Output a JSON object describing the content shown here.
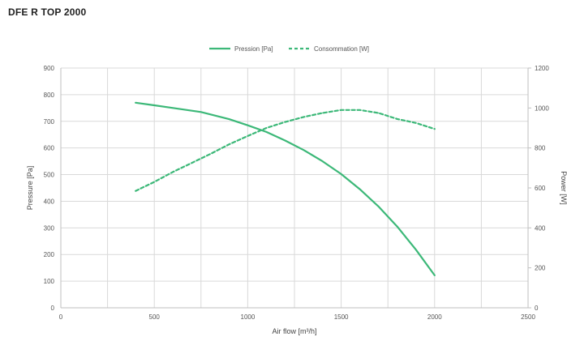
{
  "chart_data": {
    "type": "line",
    "title": "DFE R TOP 2000",
    "xlabel": "Air flow [m³/h]",
    "ylabel": "Pressure [Pa]",
    "y2label": "Power [W]",
    "xlim": [
      0,
      2500
    ],
    "ylim": [
      0,
      900
    ],
    "y2lim": [
      0,
      1200
    ],
    "x_ticks": [
      "0",
      "500",
      "1000",
      "1500",
      "2000",
      "2500"
    ],
    "y_ticks": [
      "0",
      "100",
      "200",
      "300",
      "400",
      "500",
      "600",
      "700",
      "800",
      "900"
    ],
    "y2_ticks": [
      "0",
      "200",
      "400",
      "600",
      "800",
      "1000",
      "1200"
    ],
    "grid": true,
    "legend_position": "top-center",
    "colors": {
      "series": "#3cb878",
      "grid": "#d9d9d9",
      "axis": "#bfbfbf"
    },
    "series": [
      {
        "name": "Pression [Pa]",
        "axis": "left",
        "style": "solid",
        "x": [
          400,
          500,
          600,
          750,
          900,
          1000,
          1100,
          1200,
          1300,
          1400,
          1500,
          1600,
          1700,
          1800,
          1900,
          2000
        ],
        "values": [
          770,
          760,
          750,
          735,
          708,
          685,
          660,
          628,
          592,
          550,
          502,
          445,
          380,
          305,
          218,
          122
        ]
      },
      {
        "name": "Consommation [W]",
        "axis": "right",
        "style": "dashed",
        "x": [
          400,
          500,
          600,
          700,
          800,
          900,
          1000,
          1100,
          1200,
          1300,
          1400,
          1500,
          1600,
          1700,
          1800,
          1900,
          2000
        ],
        "values": [
          585,
          630,
          680,
          725,
          770,
          818,
          860,
          900,
          930,
          955,
          975,
          990,
          990,
          975,
          945,
          925,
          895
        ]
      }
    ]
  }
}
